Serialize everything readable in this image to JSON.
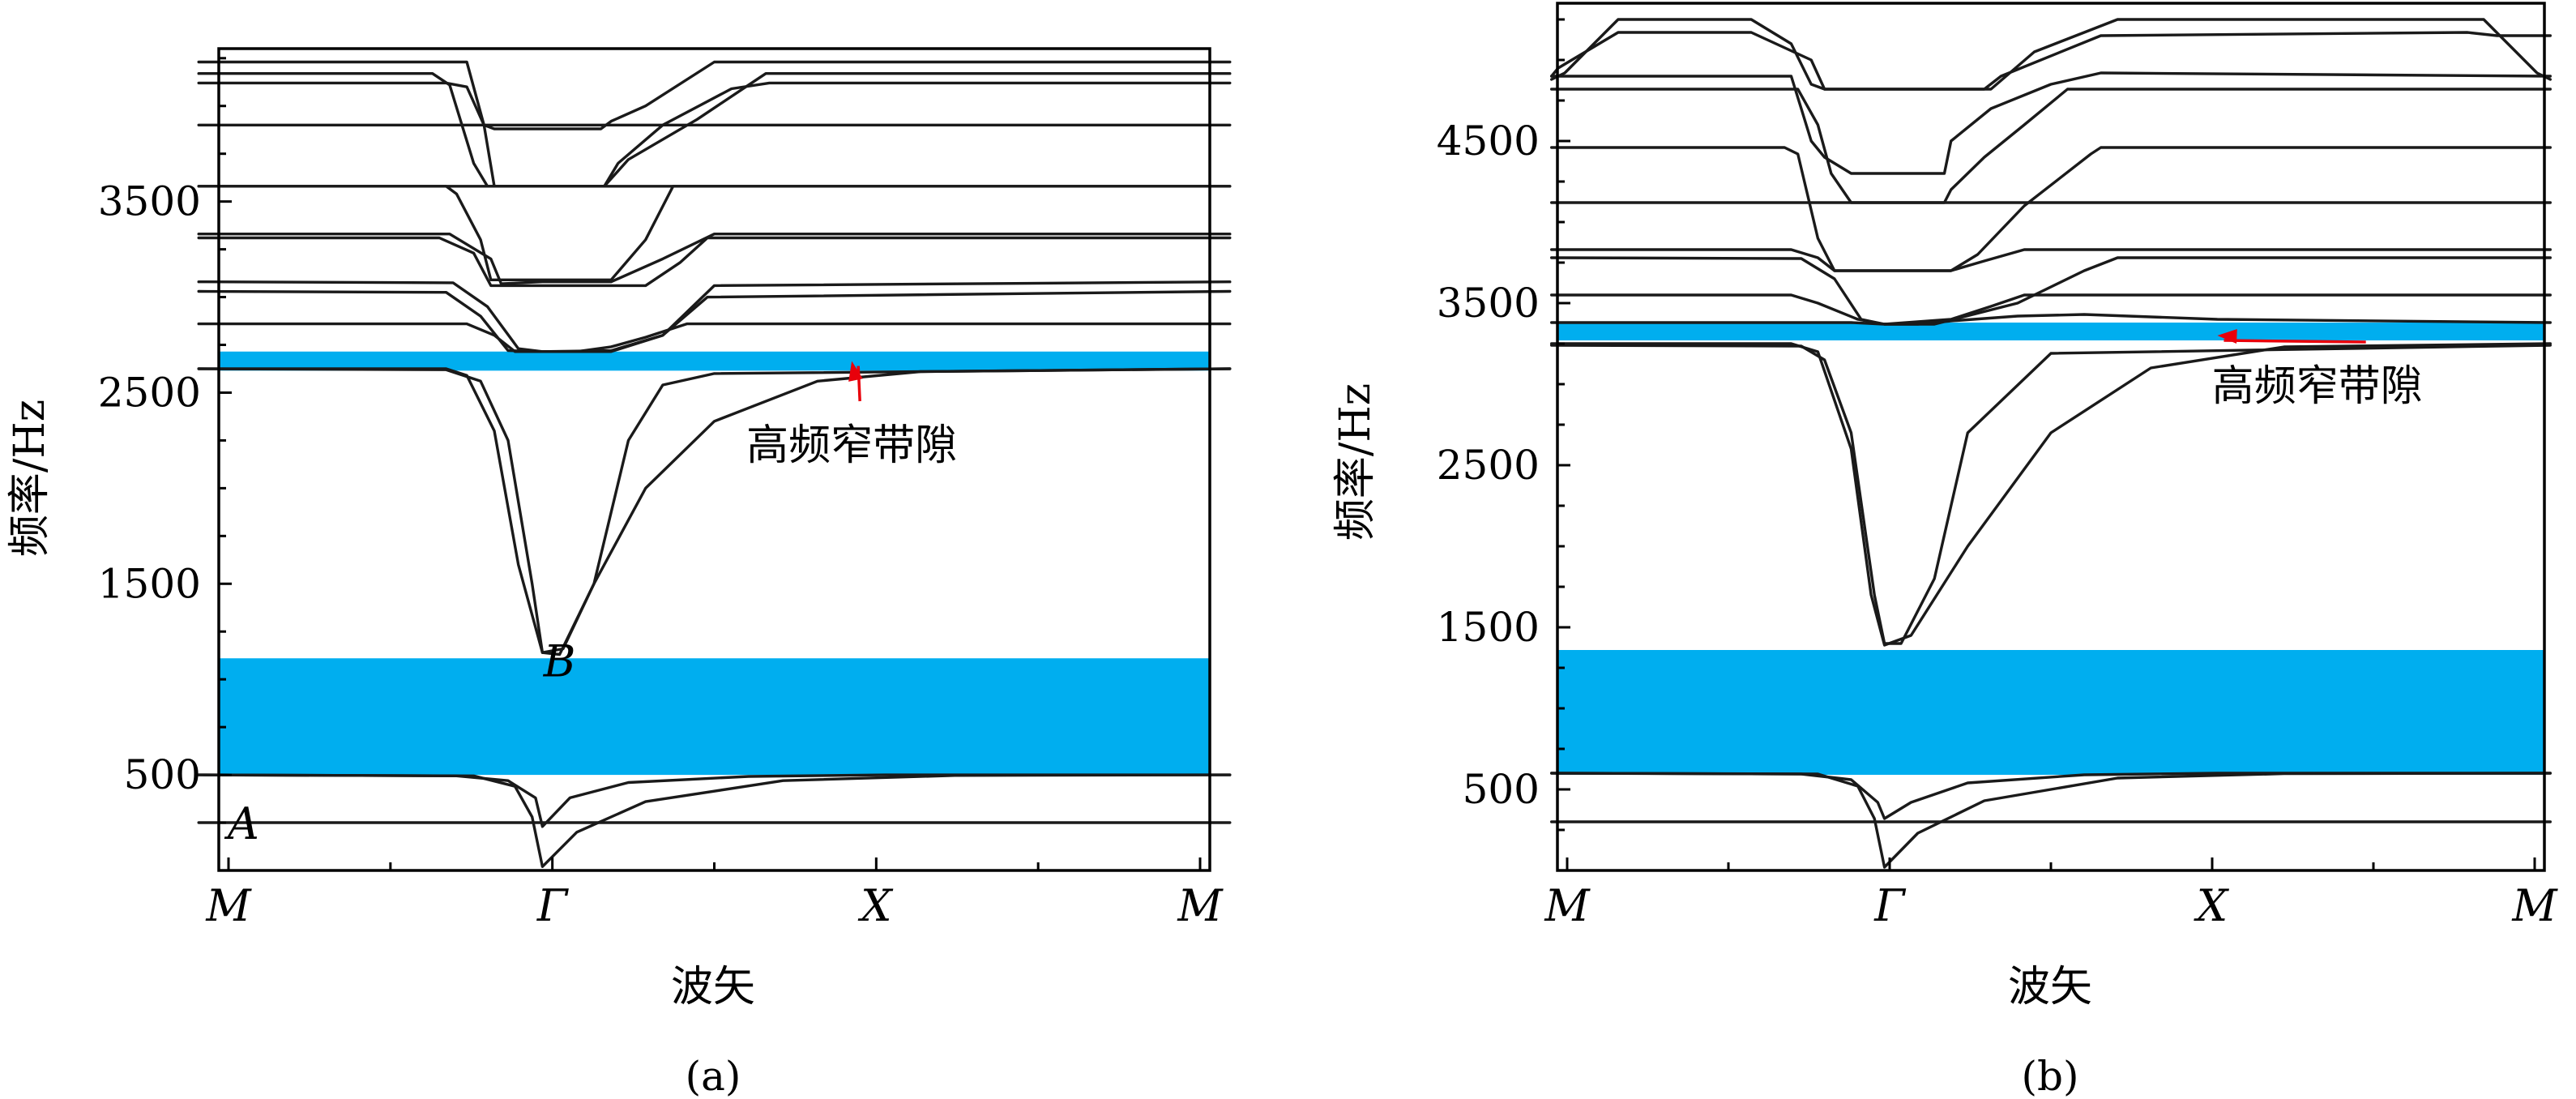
{
  "figure": {
    "annotation_text": "高频窄带隙",
    "ylabel": "频率/Hz",
    "xlabel": "波矢",
    "xtick_labels": [
      "M",
      "Γ",
      "X",
      "M"
    ]
  },
  "chart_data": [
    {
      "type": "line",
      "caption": "(a)",
      "xlabel": "波矢",
      "ylabel": "频率/Hz",
      "x_ticks": [
        "M",
        "Γ",
        "X",
        "M"
      ],
      "y_ticks": [
        500,
        1500,
        2500,
        3500
      ],
      "ylim": [
        0,
        4300
      ],
      "grid": false,
      "point_labels": [
        {
          "text": "A",
          "x": 0.13,
          "y": 250
        },
        {
          "text": "B",
          "x": 1.05,
          "y": 1100
        }
      ],
      "band_gaps": [
        {
          "low": 500,
          "high": 1110,
          "color": "#00aeef"
        },
        {
          "low": 2615,
          "high": 2715,
          "color": "#00aeef"
        }
      ],
      "annotation": {
        "text": "高频窄带隙",
        "x": 1.9,
        "y": 2150,
        "arrow_to": [
          1.9,
          2665
        ],
        "arrow_color": "#e8000b"
      },
      "series": [
        {
          "x": [
            0,
            1,
            1.15,
            2,
            3
          ],
          "y": [
            250,
            250,
            250,
            250,
            250
          ]
        },
        {
          "x": [
            0,
            0.75,
            0.9,
            0.98,
            1.0,
            1.08,
            1.25,
            1.6,
            2.0,
            3.0
          ],
          "y": [
            500,
            495,
            470,
            380,
            230,
            380,
            460,
            492,
            500,
            500
          ]
        },
        {
          "x": [
            0,
            0.8,
            0.92,
            0.97,
            1.0,
            1.1,
            1.3,
            1.7,
            2.2,
            3.0
          ],
          "y": [
            500,
            495,
            440,
            280,
            20,
            200,
            360,
            470,
            497,
            500
          ]
        },
        {
          "x": [
            0,
            0.72,
            0.82,
            0.9,
            0.97,
            1.0,
            1.05,
            1.15,
            1.25,
            1.35,
            1.5,
            3.0
          ],
          "y": [
            2625,
            2620,
            2560,
            2250,
            1500,
            1140,
            1130,
            1500,
            2250,
            2540,
            2600,
            2625
          ]
        },
        {
          "x": [
            0,
            0.72,
            0.78,
            0.86,
            0.93,
            1.0,
            1.06,
            1.15,
            1.3,
            1.5,
            1.8,
            2.1,
            3.0
          ],
          "y": [
            2625,
            2625,
            2590,
            2300,
            1600,
            1140,
            1160,
            1500,
            2000,
            2350,
            2560,
            2610,
            2625
          ]
        },
        {
          "x": [
            0,
            0.78,
            0.86,
            0.92,
            1.0,
            1.1,
            1.2,
            1.3,
            1.42,
            3.0
          ],
          "y": [
            2860,
            2860,
            2800,
            2715,
            2715,
            2715,
            2740,
            2790,
            2860,
            2860
          ]
        },
        {
          "x": [
            0,
            0.72,
            0.82,
            0.9,
            1.0,
            1.2,
            1.35,
            1.48,
            3.0
          ],
          "y": [
            3030,
            3025,
            2900,
            2720,
            2715,
            2720,
            2800,
            3000,
            3030
          ]
        },
        {
          "x": [
            0,
            0.74,
            0.84,
            0.93,
            1.0,
            1.2,
            1.35,
            1.5,
            3.0
          ],
          "y": [
            3080,
            3075,
            2950,
            2730,
            2715,
            2715,
            2800,
            3060,
            3080
          ]
        },
        {
          "x": [
            0,
            0.7,
            0.8,
            0.85,
            1.0,
            1.15,
            1.3,
            1.4,
            1.48,
            3.0
          ],
          "y": [
            3310,
            3310,
            3230,
            3060,
            3060,
            3060,
            3060,
            3180,
            3310,
            3310
          ]
        },
        {
          "x": [
            0,
            0.73,
            0.85,
            0.88,
            1.0,
            1.15,
            1.2,
            1.35,
            1.5,
            3.0
          ],
          "y": [
            3330,
            3330,
            3200,
            3070,
            3080,
            3080,
            3080,
            3200,
            3330,
            3330
          ]
        },
        {
          "x": [
            0,
            0.72,
            0.75,
            0.82,
            0.85,
            1.0,
            1.2,
            1.3,
            1.38,
            3.0
          ],
          "y": [
            3580,
            3580,
            3540,
            3300,
            3090,
            3090,
            3090,
            3300,
            3580,
            3580
          ]
        },
        {
          "x": [
            0,
            0.84,
            1.0,
            1.18,
            3.0
          ],
          "y": [
            3580,
            3580,
            3580,
            3580,
            3580
          ]
        },
        {
          "x": [
            0,
            0.8,
            0.84,
            1.0,
            1.15,
            1.18,
            1.22,
            3.0
          ],
          "y": [
            3900,
            3900,
            3900,
            3900,
            3900,
            3900,
            3900,
            3900
          ]
        },
        {
          "x": [
            0,
            0.68,
            0.73,
            0.8,
            0.84,
            1.0,
            1.18,
            1.25,
            1.45,
            1.6,
            1.65,
            3.0
          ],
          "y": [
            4170,
            4170,
            4110,
            3700,
            3580,
            3580,
            3580,
            3720,
            3930,
            4110,
            4170,
            4170
          ]
        },
        {
          "x": [
            0,
            0.72,
            0.78,
            0.83,
            0.86,
            1.0,
            1.18,
            1.22,
            1.35,
            1.55,
            1.66,
            3.0
          ],
          "y": [
            4120,
            4120,
            4100,
            3900,
            3580,
            3580,
            3580,
            3700,
            3900,
            4090,
            4120,
            4120
          ]
        },
        {
          "x": [
            0,
            0.78,
            0.83,
            0.86,
            1.0,
            1.17,
            1.2,
            1.3,
            1.5,
            3.0
          ],
          "y": [
            4230,
            4230,
            3900,
            3880,
            3880,
            3880,
            3920,
            4000,
            4230,
            4230
          ]
        }
      ]
    },
    {
      "type": "line",
      "caption": "(b)",
      "xlabel": "波矢",
      "ylabel": "频率/Hz",
      "x_ticks": [
        "M",
        "Γ",
        "X",
        "M"
      ],
      "y_ticks": [
        500,
        1500,
        2500,
        3500,
        4500
      ],
      "ylim": [
        0,
        5350
      ],
      "grid": false,
      "band_gaps": [
        {
          "low": 590,
          "high": 1360,
          "color": "#00aeef"
        },
        {
          "low": 3270,
          "high": 3380,
          "color": "#00aeef"
        }
      ],
      "annotation": {
        "text": "高频窄带隙",
        "x": 2.3,
        "y": 2900,
        "arrow_to": [
          2.0,
          3300
        ],
        "arrow_color": "#e8000b"
      },
      "series": [
        {
          "x": [
            0,
            1,
            3
          ],
          "y": [
            300,
            300,
            300
          ]
        },
        {
          "x": [
            0,
            0.75,
            0.9,
            0.98,
            1.0,
            1.08,
            1.25,
            1.6,
            2.0,
            3.0
          ],
          "y": [
            600,
            595,
            560,
            420,
            320,
            420,
            540,
            590,
            600,
            600
          ]
        },
        {
          "x": [
            0,
            0.8,
            0.92,
            0.97,
            1.0,
            1.1,
            1.3,
            1.7,
            2.2,
            3.0
          ],
          "y": [
            600,
            595,
            520,
            320,
            20,
            230,
            430,
            570,
            597,
            600
          ]
        },
        {
          "x": [
            0,
            0.75,
            0.82,
            0.9,
            0.97,
            1.0,
            1.05,
            1.15,
            1.25,
            1.5,
            3.0
          ],
          "y": [
            3240,
            3235,
            3150,
            2700,
            1700,
            1400,
            1400,
            1800,
            2700,
            3190,
            3240
          ]
        },
        {
          "x": [
            0,
            0.72,
            0.8,
            0.9,
            0.96,
            1.0,
            1.08,
            1.25,
            1.5,
            1.8,
            2.2,
            3.0
          ],
          "y": [
            3250,
            3250,
            3200,
            2600,
            1700,
            1390,
            1450,
            2000,
            2700,
            3100,
            3230,
            3250
          ]
        },
        {
          "x": [
            0,
            0.9,
            1.0,
            1.1,
            1.2,
            1.4,
            1.6,
            2.0,
            3.0
          ],
          "y": [
            3380,
            3380,
            3370,
            3370,
            3390,
            3420,
            3430,
            3400,
            3380
          ]
        },
        {
          "x": [
            0,
            0.72,
            0.8,
            0.92,
            1.0,
            1.2,
            1.32,
            1.42,
            3.0
          ],
          "y": [
            3550,
            3550,
            3500,
            3400,
            3370,
            3400,
            3480,
            3550,
            3550
          ]
        },
        {
          "x": [
            0,
            0.75,
            0.85,
            0.93,
            1.0,
            1.15,
            1.4,
            1.6,
            1.7,
            3.0
          ],
          "y": [
            3780,
            3775,
            3650,
            3400,
            3370,
            3370,
            3500,
            3700,
            3780,
            3780
          ]
        },
        {
          "x": [
            0,
            0.72,
            0.8,
            0.85,
            1.0,
            1.2,
            1.3,
            1.42,
            3.0
          ],
          "y": [
            3830,
            3830,
            3780,
            3700,
            3700,
            3700,
            3760,
            3830,
            3830
          ]
        },
        {
          "x": [
            0,
            0.85,
            1.2,
            3.0
          ],
          "y": [
            4120,
            4120,
            4120,
            4120
          ]
        },
        {
          "x": [
            0,
            0.7,
            0.74,
            0.8,
            0.85,
            1.0,
            1.2,
            1.28,
            1.42,
            1.62,
            1.65,
            3.0
          ],
          "y": [
            4460,
            4460,
            4420,
            3900,
            3700,
            3700,
            3700,
            3800,
            4100,
            4420,
            4460,
            4460
          ]
        },
        {
          "x": [
            0,
            0.74,
            0.8,
            0.84,
            0.9,
            1.0,
            1.18,
            1.2,
            1.3,
            1.42,
            1.55,
            3.0
          ],
          "y": [
            4820,
            4820,
            4600,
            4300,
            4120,
            4120,
            4120,
            4200,
            4400,
            4600,
            4820,
            4820
          ]
        },
        {
          "x": [
            0,
            0.72,
            0.75,
            0.78,
            0.82,
            0.9,
            1.0,
            1.18,
            1.2,
            1.32,
            1.5,
            1.65,
            3.0
          ],
          "y": [
            4900,
            4900,
            4700,
            4500,
            4400,
            4300,
            4300,
            4300,
            4500,
            4700,
            4850,
            4920,
            4900
          ]
        },
        {
          "x": [
            0,
            0.04,
            0.2,
            0.6,
            0.72,
            0.78,
            0.82,
            1.0,
            1.32,
            1.45,
            1.7,
            2.8,
            2.96,
            3.0
          ],
          "y": [
            4880,
            4920,
            5250,
            5250,
            5100,
            4850,
            4820,
            4820,
            4820,
            5050,
            5250,
            5250,
            4920,
            4880
          ]
        },
        {
          "x": [
            0,
            0.02,
            0.2,
            0.6,
            0.78,
            0.82,
            1.0,
            1.3,
            1.35,
            1.65,
            2.75,
            2.84,
            3.0
          ],
          "y": [
            4900,
            4950,
            5170,
            5170,
            5000,
            4820,
            4820,
            4820,
            4900,
            5150,
            5170,
            5150,
            5150
          ]
        }
      ]
    }
  ]
}
